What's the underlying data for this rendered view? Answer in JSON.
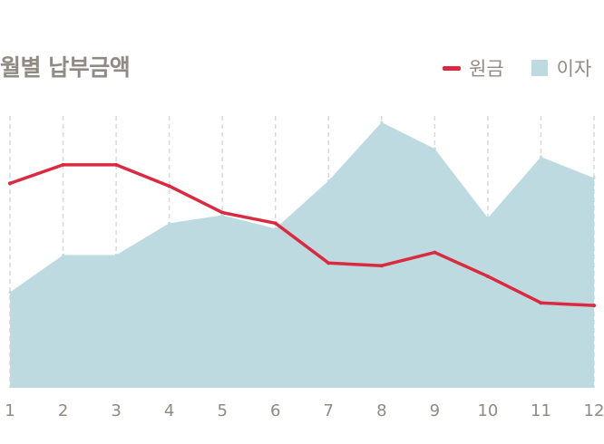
{
  "title": "월별 납부금액",
  "colors": {
    "principal": "#db2a3f",
    "interest": "#bcdadf",
    "grid": "#d9d9d9",
    "text": "#8f8a84"
  },
  "chart_data": {
    "type": "line",
    "title": "월별 납부금액",
    "xlabel": "",
    "ylabel": "",
    "categories": [
      "1",
      "2",
      "3",
      "4",
      "5",
      "6",
      "7",
      "8",
      "9",
      "10",
      "11",
      "12"
    ],
    "ylim": [
      0,
      100
    ],
    "grid": "vertical-dashed",
    "legend_position": "top-right",
    "series": [
      {
        "name": "원금",
        "kind": "line",
        "values": [
          77,
          84,
          84,
          76,
          66,
          62,
          47,
          46,
          51,
          42,
          32,
          31
        ]
      },
      {
        "name": "이자",
        "kind": "area",
        "values": [
          36,
          50,
          50,
          62,
          65,
          60,
          78,
          100,
          90,
          64,
          87,
          79
        ]
      }
    ]
  }
}
